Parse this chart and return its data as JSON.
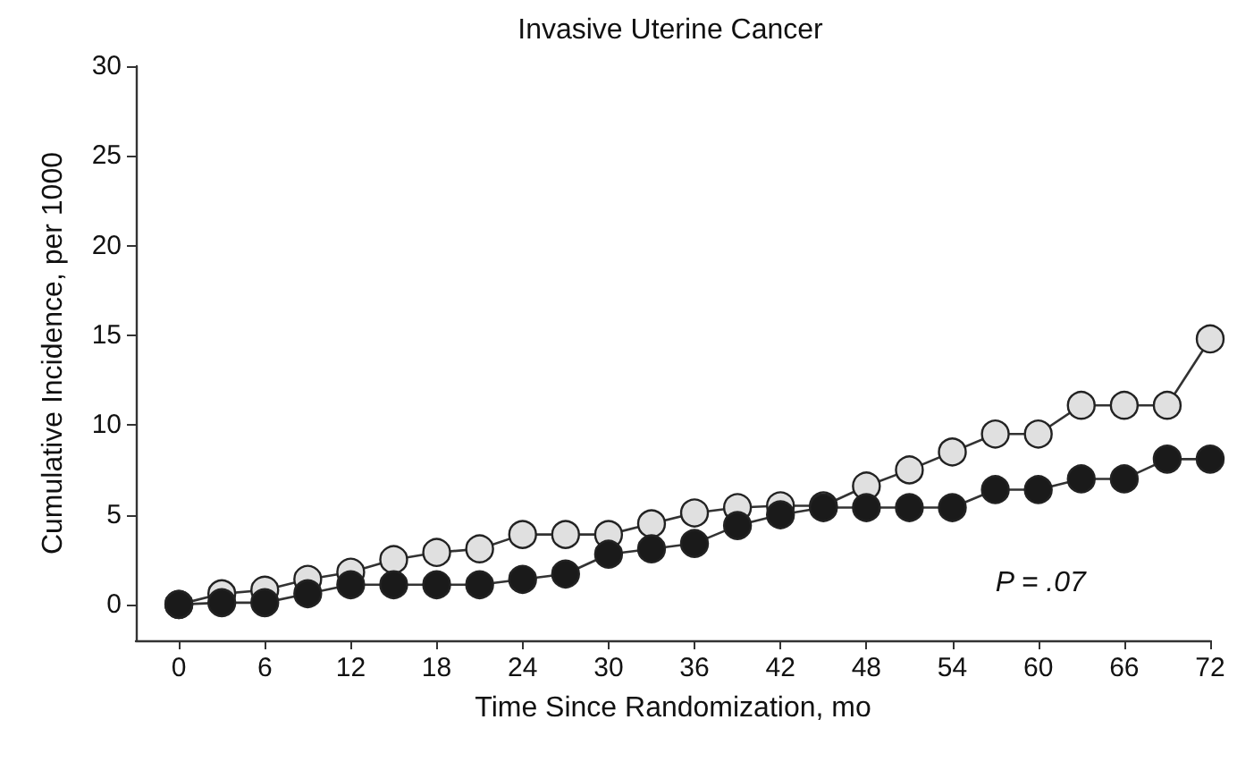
{
  "chart_data": {
    "type": "line",
    "title": "Invasive Uterine Cancer",
    "xlabel": "Time Since Randomization, mo",
    "ylabel": "Cumulative Incidence, per 1000",
    "x": [
      0,
      3,
      6,
      9,
      12,
      15,
      18,
      21,
      24,
      27,
      30,
      33,
      36,
      39,
      42,
      45,
      48,
      51,
      54,
      57,
      60,
      63,
      66,
      69,
      72
    ],
    "series": [
      {
        "color": "#e0e0e0",
        "values": [
          0,
          0.6,
          0.8,
          1.4,
          1.8,
          2.5,
          2.9,
          3.1,
          3.9,
          3.9,
          3.9,
          4.5,
          5.1,
          5.4,
          5.5,
          5.5,
          6.6,
          7.5,
          8.5,
          9.5,
          9.5,
          11.1,
          11.1,
          11.1,
          14.8
        ]
      },
      {
        "color": "#1a1a1a",
        "values": [
          0,
          0.1,
          0.1,
          0.6,
          1.1,
          1.1,
          1.1,
          1.1,
          1.4,
          1.7,
          2.8,
          3.1,
          3.4,
          4.4,
          5.0,
          5.4,
          5.4,
          5.4,
          5.4,
          6.4,
          6.4,
          7.0,
          7.0,
          8.1,
          8.1
        ]
      }
    ],
    "xlim": [
      -3,
      72
    ],
    "xticks": [
      0,
      6,
      12,
      18,
      24,
      30,
      36,
      42,
      48,
      54,
      60,
      66,
      72
    ],
    "ylim": [
      -2,
      30
    ],
    "yticks": [
      0,
      5,
      10,
      15,
      20,
      25,
      30
    ],
    "marker": "circle",
    "line_style": "solid",
    "grid": false,
    "annotations": [
      "P = .07"
    ]
  }
}
